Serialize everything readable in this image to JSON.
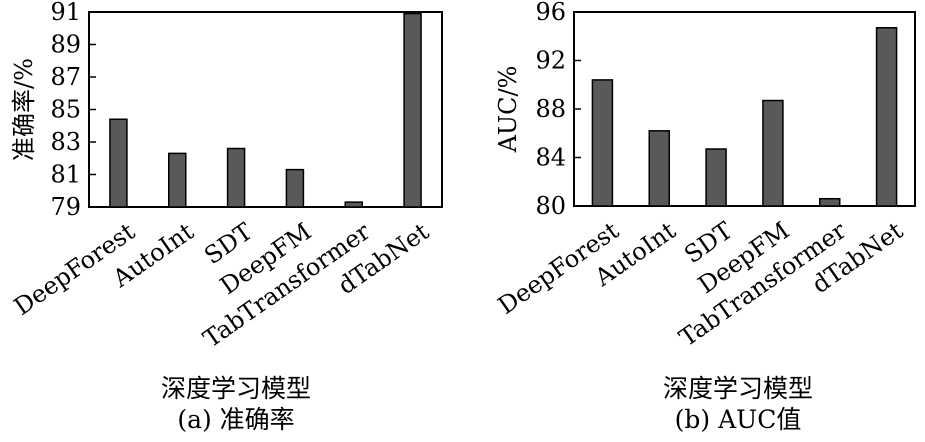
{
  "chart_data": [
    {
      "type": "bar",
      "categories": [
        "DeepForest",
        "AutoInt",
        "SDT",
        "DeepFM",
        "TabTransformer",
        "dTabNet"
      ],
      "values": [
        84.4,
        82.3,
        82.6,
        81.3,
        79.3,
        90.9
      ],
      "ylim": [
        79,
        91
      ],
      "yticks": [
        79,
        81,
        83,
        85,
        87,
        89,
        91
      ],
      "ylabel": "准确率/%",
      "xlabel": "深度学习模型",
      "caption": "(a) 准确率",
      "bar_color": "#595959",
      "grid": false
    },
    {
      "type": "bar",
      "categories": [
        "DeepForest",
        "AutoInt",
        "SDT",
        "DeepFM",
        "TabTransformer",
        "dTabNet"
      ],
      "values": [
        90.4,
        86.2,
        84.7,
        88.7,
        80.6,
        94.7
      ],
      "ylim": [
        80,
        96
      ],
      "yticks": [
        80,
        84,
        88,
        92,
        96
      ],
      "ylabel": "AUC/%",
      "xlabel": "深度学习模型",
      "caption": "(b) AUC值",
      "bar_color": "#595959",
      "grid": false
    }
  ]
}
